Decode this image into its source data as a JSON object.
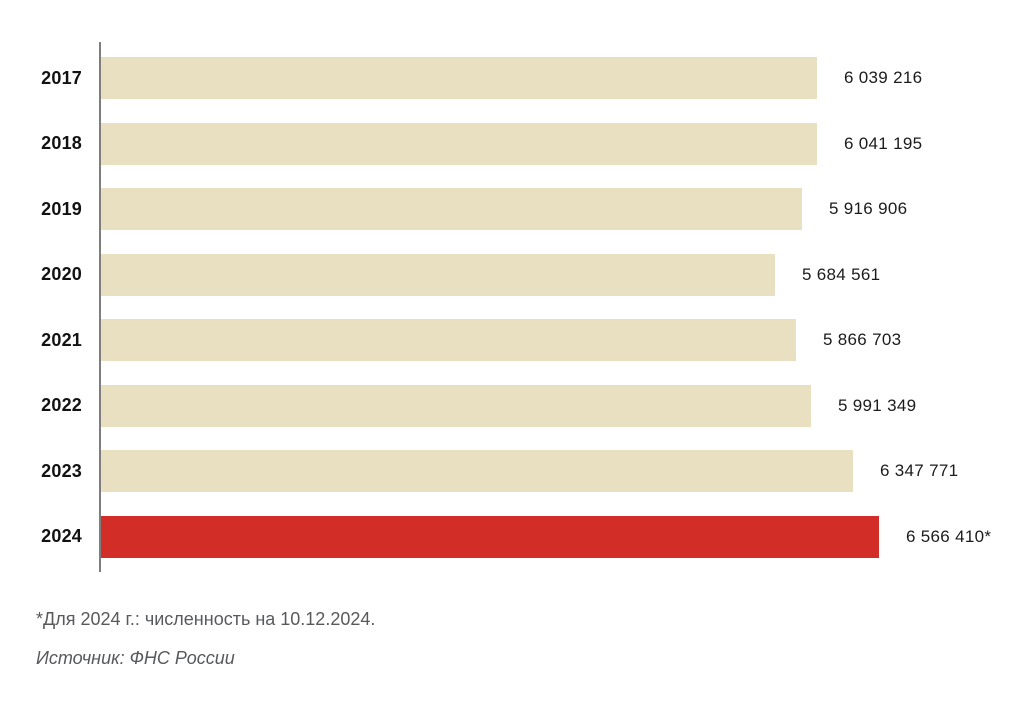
{
  "chart_data": {
    "type": "bar",
    "orientation": "horizontal",
    "title": "",
    "xlabel": "",
    "ylabel": "",
    "grid": false,
    "legend": false,
    "categories": [
      "2017",
      "2018",
      "2019",
      "2020",
      "2021",
      "2022",
      "2023",
      "2024"
    ],
    "values": [
      6039216,
      6041195,
      5916906,
      5684561,
      5866703,
      5991349,
      6347771,
      6566410
    ],
    "value_labels": [
      "6 039 216",
      "6 041 195",
      "5 916 906",
      "5 684 561",
      "5 866 703",
      "5 991 349",
      "6 347 771",
      "6 566 410*"
    ],
    "highlight_category": "2024",
    "highlight_index": 7,
    "xlim": [
      0,
      6566410
    ],
    "bar_color": "#e9dfc1",
    "highlight_color": "#d22d26"
  },
  "footnotes": {
    "note": "*Для 2024 г.: численность на 10.12.2024.",
    "source": "Источник: ФНС России"
  }
}
